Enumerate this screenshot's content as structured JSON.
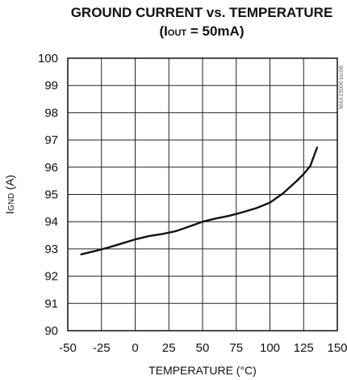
{
  "chart_data": {
    "type": "line",
    "title": "GROUND CURRENT vs. TEMPERATURE",
    "subtitle": {
      "prefix": "(I",
      "sub": "OUT",
      "suffix": " = 50mA)"
    },
    "xlabel": "TEMPERATURE (°C)",
    "ylabel": {
      "main": "I",
      "sub": "GND",
      "suffix": " (A)"
    },
    "xlim": [
      -50,
      150
    ],
    "ylim": [
      90,
      100
    ],
    "xticks": [
      "-50",
      "-25",
      "0",
      "25",
      "50",
      "75",
      "100",
      "125",
      "150"
    ],
    "yticks": [
      "90",
      "91",
      "92",
      "93",
      "94",
      "95",
      "96",
      "97",
      "98",
      "99",
      "100"
    ],
    "grid": true,
    "series": [
      {
        "x": [
          -40,
          -30,
          -20,
          -10,
          0,
          10,
          20,
          30,
          40,
          50,
          60,
          70,
          80,
          90,
          100,
          110,
          120,
          125,
          130,
          135
        ],
        "y": [
          92.8,
          92.92,
          93.05,
          93.2,
          93.35,
          93.47,
          93.55,
          93.65,
          93.82,
          94.0,
          94.12,
          94.22,
          94.35,
          94.5,
          94.7,
          95.05,
          95.5,
          95.75,
          96.05,
          96.72
        ]
      }
    ],
    "watermark": "MAX15006 toc08"
  }
}
